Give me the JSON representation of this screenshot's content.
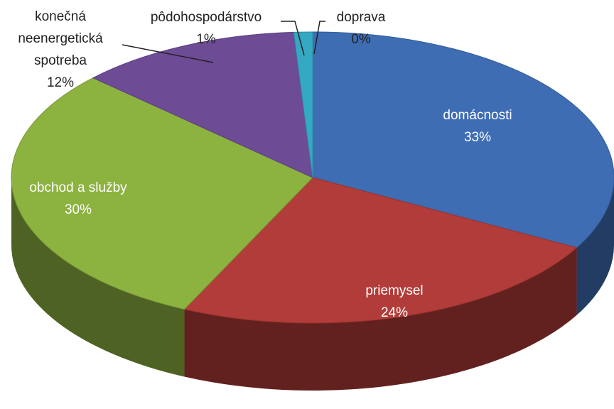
{
  "chart_data": {
    "type": "pie",
    "categories": [
      "domácnosti",
      "priemysel",
      "obchod a služby",
      "konečná neenergetická spotreba",
      "pôdohospodárstvo",
      "doprava"
    ],
    "values": [
      33,
      24,
      30,
      12,
      1,
      0
    ],
    "value_labels": [
      "33%",
      "24%",
      "30%",
      "12%",
      "1%",
      "0%"
    ],
    "colors": [
      "#3e6db4",
      "#b23c39",
      "#8cb240",
      "#6d4b95",
      "#35a8c3",
      "#e7802a"
    ]
  }
}
